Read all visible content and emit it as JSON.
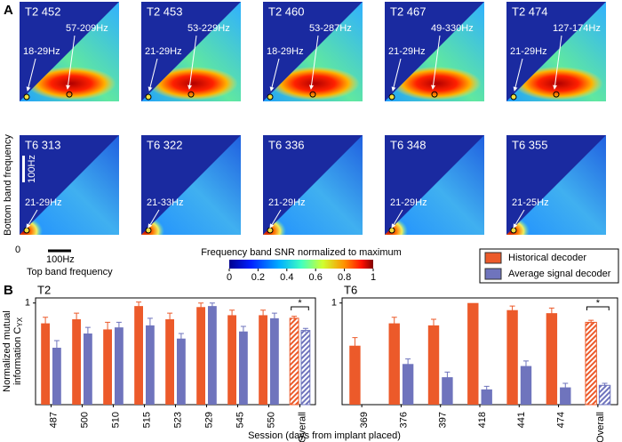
{
  "panel_a": {
    "label": "A",
    "heatmaps": [
      {
        "title": "T2 452",
        "low_band": "18-29Hz",
        "high_band": "57-209Hz"
      },
      {
        "title": "T2 453",
        "low_band": "21-29Hz",
        "high_band": "53-229Hz"
      },
      {
        "title": "T2 460",
        "low_band": "18-29Hz",
        "high_band": "53-287Hz"
      },
      {
        "title": "T2 467",
        "low_band": "21-29Hz",
        "high_band": "49-330Hz"
      },
      {
        "title": "T2 474",
        "low_band": "21-29Hz",
        "high_band": "127-174Hz"
      },
      {
        "title": "T6 313",
        "low_band": "21-29Hz"
      },
      {
        "title": "T6 322",
        "low_band": "21-33Hz"
      },
      {
        "title": "T6 336",
        "low_band": "21-29Hz"
      },
      {
        "title": "T6 348",
        "low_band": "21-29Hz"
      },
      {
        "title": "T6 355",
        "low_band": "21-25Hz"
      }
    ],
    "y_axis_label": "Bottom band frequency",
    "x_axis_label": "Top band frequency",
    "y_scale_bar": "100Hz",
    "x_scale_bar": "100Hz",
    "origin_label": "0",
    "colorbar": {
      "title": "Frequency band SNR normalized to maximum",
      "lim": [
        0,
        1
      ],
      "ticks": [
        0,
        0.2,
        0.4,
        0.6,
        0.8,
        1
      ]
    }
  },
  "panel_b_label": "B",
  "x_axis_label": "Session (days from implant placed)",
  "chart_data": [
    {
      "type": "bar",
      "title": "T2",
      "ylabel": [
        "Normalized mutual",
        "information C"
      ],
      "ylabel_subscript": "YX",
      "categories": [
        "487",
        "500",
        "510",
        "515",
        "523",
        "529",
        "545",
        "550",
        "Overall"
      ],
      "series": [
        {
          "name": "Historical decoder",
          "color": "#ec5a2a",
          "values": [
            0.8,
            0.84,
            0.74,
            0.97,
            0.84,
            0.96,
            0.88,
            0.88,
            0.85
          ],
          "errors": [
            0.06,
            0.06,
            0.07,
            0.04,
            0.06,
            0.04,
            0.05,
            0.05,
            0.02
          ]
        },
        {
          "name": "Average signal decoder",
          "color": "#6f74bd",
          "values": [
            0.56,
            0.7,
            0.76,
            0.78,
            0.65,
            0.97,
            0.72,
            0.85,
            0.73
          ],
          "errors": [
            0.07,
            0.06,
            0.05,
            0.07,
            0.05,
            0.03,
            0.05,
            0.05,
            0.02
          ]
        }
      ],
      "ylim": [
        0,
        1.05
      ],
      "yticks": [
        1
      ],
      "significance": "*"
    },
    {
      "type": "bar",
      "title": "T6",
      "categories": [
        "369",
        "376",
        "397",
        "418",
        "441",
        "474",
        "Overall"
      ],
      "series": [
        {
          "name": "Historical decoder",
          "color": "#ec5a2a",
          "values": [
            0.58,
            0.8,
            0.78,
            1.0,
            0.93,
            0.9,
            0.81
          ],
          "errors": [
            0.08,
            0.06,
            0.06,
            0.0,
            0.04,
            0.05,
            0.02
          ]
        },
        {
          "name": "Average signal decoder",
          "color": "#6f74bd",
          "values": [
            null,
            0.4,
            0.27,
            0.15,
            0.38,
            0.17,
            0.19
          ],
          "errors": [
            null,
            0.05,
            0.05,
            0.03,
            0.05,
            0.04,
            0.02
          ]
        }
      ],
      "ylim": [
        0,
        1.05
      ],
      "yticks": [
        1
      ],
      "significance": "*"
    }
  ]
}
